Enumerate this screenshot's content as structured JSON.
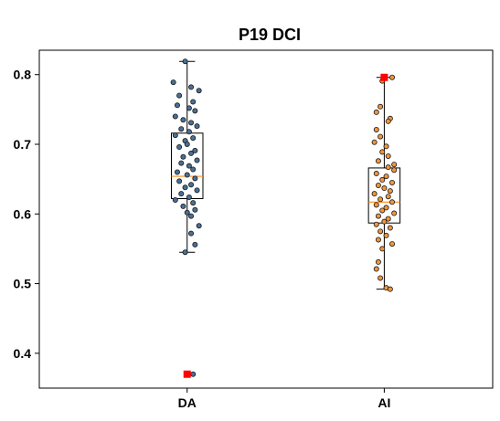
{
  "chart_data": {
    "type": "box",
    "title": "P19 DCI",
    "xlabel": "",
    "ylabel": "",
    "ylim": [
      0.35,
      0.835
    ],
    "yticks": [
      0.4,
      0.5,
      0.6,
      0.7,
      0.8
    ],
    "ytick_labels": [
      "0.4",
      "0.5",
      "0.6",
      "0.7",
      "0.8"
    ],
    "grid": false,
    "categories": [
      "DA",
      "AI"
    ],
    "colors": {
      "DA_points": "#4a6f96",
      "AI_points": "#f0963c",
      "median": "#ff8c1a",
      "highlight": "#ff0000"
    },
    "series": [
      {
        "category": "DA",
        "box": {
          "whisker_low": 0.545,
          "q1": 0.622,
          "median": 0.654,
          "q3": 0.716,
          "whisker_high": 0.819
        },
        "highlight": 0.37,
        "points": [
          {
            "x": 0.99,
            "y": 0.819
          },
          {
            "x": 0.93,
            "y": 0.789
          },
          {
            "x": 1.02,
            "y": 0.782
          },
          {
            "x": 1.06,
            "y": 0.777
          },
          {
            "x": 0.96,
            "y": 0.77
          },
          {
            "x": 1.03,
            "y": 0.761
          },
          {
            "x": 0.95,
            "y": 0.756
          },
          {
            "x": 1.01,
            "y": 0.752
          },
          {
            "x": 1.04,
            "y": 0.748
          },
          {
            "x": 0.94,
            "y": 0.74
          },
          {
            "x": 0.98,
            "y": 0.735
          },
          {
            "x": 1.02,
            "y": 0.731
          },
          {
            "x": 1.05,
            "y": 0.726
          },
          {
            "x": 0.97,
            "y": 0.722
          },
          {
            "x": 1.01,
            "y": 0.718
          },
          {
            "x": 0.94,
            "y": 0.713
          },
          {
            "x": 1.03,
            "y": 0.709
          },
          {
            "x": 0.99,
            "y": 0.705
          },
          {
            "x": 1.0,
            "y": 0.7
          },
          {
            "x": 0.96,
            "y": 0.696
          },
          {
            "x": 1.04,
            "y": 0.691
          },
          {
            "x": 1.02,
            "y": 0.687
          },
          {
            "x": 0.98,
            "y": 0.682
          },
          {
            "x": 1.05,
            "y": 0.677
          },
          {
            "x": 0.97,
            "y": 0.673
          },
          {
            "x": 1.01,
            "y": 0.669
          },
          {
            "x": 1.03,
            "y": 0.664
          },
          {
            "x": 0.95,
            "y": 0.66
          },
          {
            "x": 1.0,
            "y": 0.656
          },
          {
            "x": 1.04,
            "y": 0.651
          },
          {
            "x": 0.96,
            "y": 0.647
          },
          {
            "x": 1.02,
            "y": 0.642
          },
          {
            "x": 0.99,
            "y": 0.638
          },
          {
            "x": 1.05,
            "y": 0.634
          },
          {
            "x": 0.97,
            "y": 0.629
          },
          {
            "x": 1.01,
            "y": 0.624
          },
          {
            "x": 0.94,
            "y": 0.62
          },
          {
            "x": 1.03,
            "y": 0.616
          },
          {
            "x": 0.98,
            "y": 0.611
          },
          {
            "x": 1.04,
            "y": 0.606
          },
          {
            "x": 1.0,
            "y": 0.602
          },
          {
            "x": 1.02,
            "y": 0.597
          },
          {
            "x": 1.06,
            "y": 0.583
          },
          {
            "x": 1.02,
            "y": 0.572
          },
          {
            "x": 1.04,
            "y": 0.556
          },
          {
            "x": 0.99,
            "y": 0.545
          },
          {
            "x": 1.03,
            "y": 0.37
          }
        ]
      },
      {
        "category": "AI",
        "box": {
          "whisker_low": 0.492,
          "q1": 0.587,
          "median": 0.617,
          "q3": 0.666,
          "whisker_high": 0.796
        },
        "highlight": 0.796,
        "points": [
          {
            "x": 2.04,
            "y": 0.796
          },
          {
            "x": 1.99,
            "y": 0.791
          },
          {
            "x": 1.98,
            "y": 0.754
          },
          {
            "x": 1.96,
            "y": 0.746
          },
          {
            "x": 2.03,
            "y": 0.737
          },
          {
            "x": 2.02,
            "y": 0.733
          },
          {
            "x": 1.96,
            "y": 0.721
          },
          {
            "x": 1.98,
            "y": 0.711
          },
          {
            "x": 1.95,
            "y": 0.703
          },
          {
            "x": 2.01,
            "y": 0.697
          },
          {
            "x": 1.99,
            "y": 0.689
          },
          {
            "x": 2.02,
            "y": 0.683
          },
          {
            "x": 1.97,
            "y": 0.676
          },
          {
            "x": 2.05,
            "y": 0.671
          },
          {
            "x": 2.02,
            "y": 0.667
          },
          {
            "x": 2.05,
            "y": 0.663
          },
          {
            "x": 1.96,
            "y": 0.658
          },
          {
            "x": 2.01,
            "y": 0.654
          },
          {
            "x": 1.99,
            "y": 0.649
          },
          {
            "x": 2.04,
            "y": 0.645
          },
          {
            "x": 1.97,
            "y": 0.641
          },
          {
            "x": 2.0,
            "y": 0.637
          },
          {
            "x": 2.03,
            "y": 0.633
          },
          {
            "x": 1.95,
            "y": 0.629
          },
          {
            "x": 2.02,
            "y": 0.625
          },
          {
            "x": 1.98,
            "y": 0.621
          },
          {
            "x": 2.04,
            "y": 0.617
          },
          {
            "x": 1.96,
            "y": 0.613
          },
          {
            "x": 2.01,
            "y": 0.609
          },
          {
            "x": 1.99,
            "y": 0.605
          },
          {
            "x": 2.05,
            "y": 0.601
          },
          {
            "x": 1.97,
            "y": 0.597
          },
          {
            "x": 2.02,
            "y": 0.593
          },
          {
            "x": 2.0,
            "y": 0.589
          },
          {
            "x": 1.96,
            "y": 0.585
          },
          {
            "x": 2.03,
            "y": 0.58
          },
          {
            "x": 1.98,
            "y": 0.575
          },
          {
            "x": 2.01,
            "y": 0.569
          },
          {
            "x": 1.97,
            "y": 0.563
          },
          {
            "x": 2.04,
            "y": 0.557
          },
          {
            "x": 1.99,
            "y": 0.55
          },
          {
            "x": 1.97,
            "y": 0.531
          },
          {
            "x": 1.96,
            "y": 0.521
          },
          {
            "x": 1.98,
            "y": 0.508
          },
          {
            "x": 2.01,
            "y": 0.494
          },
          {
            "x": 2.03,
            "y": 0.492
          }
        ]
      }
    ]
  }
}
